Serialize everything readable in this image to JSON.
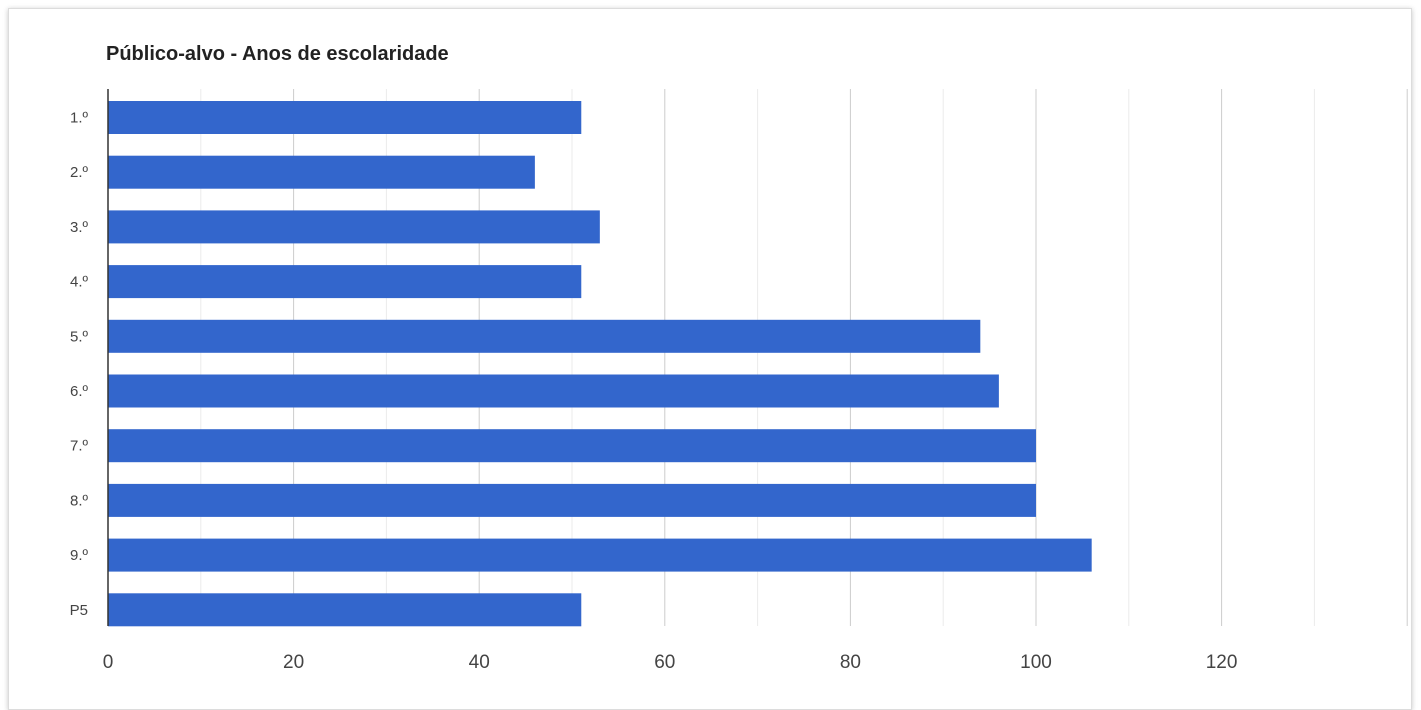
{
  "chart_data": {
    "type": "bar",
    "orientation": "horizontal",
    "title": "Público-alvo - Anos de escolaridade",
    "xlabel": "",
    "ylabel": "",
    "categories": [
      "1.º",
      "2.º",
      "3.º",
      "4.º",
      "5.º",
      "6.º",
      "7.º",
      "8.º",
      "9.º",
      "P5"
    ],
    "values": [
      51,
      46,
      53,
      51,
      94,
      96,
      100,
      100,
      106,
      51
    ],
    "xlim": [
      0,
      140
    ],
    "x_ticks": [
      0,
      20,
      40,
      60,
      80,
      100,
      120
    ],
    "minor_gridlines": true,
    "grid": true,
    "legend": "none",
    "bar_color": "#3366cc"
  }
}
